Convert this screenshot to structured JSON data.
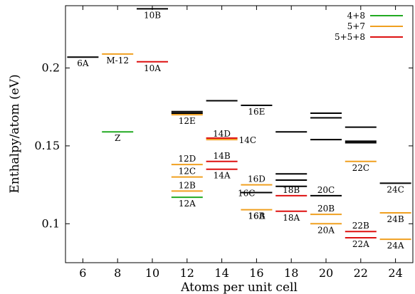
{
  "chart_data": {
    "type": "scatter",
    "marker": "horizontal-line",
    "xlabel": "Atoms per unit cell",
    "ylabel": "Enthalpy/atom (eV)",
    "xlim": [
      5,
      25
    ],
    "ylim": [
      0.075,
      0.24
    ],
    "xticks": [
      6,
      8,
      10,
      12,
      14,
      16,
      18,
      20,
      22,
      24
    ],
    "yticks": [
      0.1,
      0.15,
      0.2
    ],
    "ytick_labels": [
      "0.1",
      "0.15",
      "0.2"
    ],
    "grid": false,
    "legend_position": "top-right",
    "legend": [
      {
        "label": "4+8",
        "color": "#22aa22"
      },
      {
        "label": "5+7",
        "color": "#f0a020"
      },
      {
        "label": "5+5+8",
        "color": "#dd1111"
      }
    ],
    "colors": {
      "other": "#000000",
      "4+8": "#22aa22",
      "5+7": "#f0a020",
      "5+5+8": "#dd1111"
    },
    "points": [
      {
        "x": 6,
        "y": 0.207,
        "kind": "other",
        "label": "6A"
      },
      {
        "x": 8,
        "y": 0.209,
        "kind": "5+7",
        "label": "M-12"
      },
      {
        "x": 8,
        "y": 0.159,
        "kind": "4+8",
        "label": "Z"
      },
      {
        "x": 10,
        "y": 0.238,
        "kind": "other",
        "label": "10B"
      },
      {
        "x": 10,
        "y": 0.204,
        "kind": "5+5+8",
        "label": "10A"
      },
      {
        "x": 12,
        "y": 0.172,
        "kind": "other",
        "label": ""
      },
      {
        "x": 12,
        "y": 0.171,
        "kind": "other",
        "label": ""
      },
      {
        "x": 12,
        "y": 0.17,
        "kind": "5+7",
        "label": "12E"
      },
      {
        "x": 12,
        "y": 0.138,
        "kind": "5+7",
        "label": "12D"
      },
      {
        "x": 12,
        "y": 0.13,
        "kind": "5+7",
        "label": "12C"
      },
      {
        "x": 12,
        "y": 0.121,
        "kind": "5+7",
        "label": "12B"
      },
      {
        "x": 12,
        "y": 0.117,
        "kind": "4+8",
        "label": "12A"
      },
      {
        "x": 14,
        "y": 0.179,
        "kind": "other",
        "label": ""
      },
      {
        "x": 14,
        "y": 0.155,
        "kind": "5+5+8",
        "label": ""
      },
      {
        "x": 14,
        "y": 0.154,
        "kind": "5+7",
        "label": "14D"
      },
      {
        "x": 14,
        "y": 0.14,
        "kind": "5+5+8",
        "label": "14B"
      },
      {
        "x": 14,
        "y": 0.135,
        "kind": "5+5+8",
        "label": "14A"
      },
      {
        "x": 16,
        "y": 0.176,
        "kind": "other",
        "label": "16E"
      },
      {
        "x": 16,
        "y": 0.125,
        "kind": "5+7",
        "label": "16D"
      },
      {
        "x": 16,
        "y": 0.12,
        "kind": "other",
        "label": "16C"
      },
      {
        "x": 16,
        "y": 0.109,
        "kind": "5+7",
        "label": "16B"
      },
      {
        "x": 18,
        "y": 0.159,
        "kind": "other",
        "label": ""
      },
      {
        "x": 18,
        "y": 0.132,
        "kind": "other",
        "label": ""
      },
      {
        "x": 18,
        "y": 0.128,
        "kind": "other",
        "label": ""
      },
      {
        "x": 18,
        "y": 0.124,
        "kind": "other",
        "label": ""
      },
      {
        "x": 18,
        "y": 0.118,
        "kind": "5+5+8",
        "label": "18B"
      },
      {
        "x": 18,
        "y": 0.108,
        "kind": "5+5+8",
        "label": ""
      },
      {
        "x": 20,
        "y": 0.171,
        "kind": "other",
        "label": ""
      },
      {
        "x": 20,
        "y": 0.168,
        "kind": "other",
        "label": ""
      },
      {
        "x": 20,
        "y": 0.154,
        "kind": "other",
        "label": ""
      },
      {
        "x": 20,
        "y": 0.118,
        "kind": "other",
        "label": "20C"
      },
      {
        "x": 20,
        "y": 0.106,
        "kind": "5+7",
        "label": "20B"
      },
      {
        "x": 20,
        "y": 0.1,
        "kind": "5+7",
        "label": "20A"
      },
      {
        "x": 22,
        "y": 0.162,
        "kind": "other",
        "label": ""
      },
      {
        "x": 22,
        "y": 0.153,
        "kind": "other",
        "label": ""
      },
      {
        "x": 22,
        "y": 0.152,
        "kind": "other",
        "label": ""
      },
      {
        "x": 22,
        "y": 0.14,
        "kind": "5+7",
        "label": "22C"
      },
      {
        "x": 22,
        "y": 0.095,
        "kind": "5+5+8",
        "label": "22B"
      },
      {
        "x": 22,
        "y": 0.091,
        "kind": "5+5+8",
        "label": "22A"
      },
      {
        "x": 24,
        "y": 0.126,
        "kind": "other",
        "label": "24C"
      },
      {
        "x": 24,
        "y": 0.107,
        "kind": "5+7",
        "label": "24B"
      },
      {
        "x": 24,
        "y": 0.09,
        "kind": "5+7",
        "label": "24A"
      }
    ],
    "annotations": [
      {
        "text": "14C",
        "x": 14,
        "y": 0.154
      },
      {
        "text": "16A",
        "x": 16,
        "y": 0.109
      },
      {
        "text": "18A",
        "x": 18,
        "y": 0.108
      }
    ]
  }
}
